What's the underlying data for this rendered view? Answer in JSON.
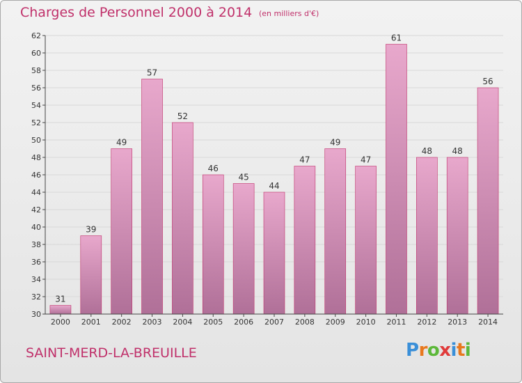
{
  "header": {
    "title": "Charges de Personnel 2000 à 2014",
    "subtitle": "(en milliers d'€)"
  },
  "footer": {
    "commune": "SAINT-MERD-LA-BREUILLE",
    "logo_letters": [
      "P",
      "r",
      "o",
      "x",
      "i",
      "t",
      "i"
    ],
    "logo_colors": [
      "#3a8fd8",
      "#e8781e",
      "#5cb83a",
      "#e03a3a",
      "#3a8fd8",
      "#e8781e",
      "#5cb83a"
    ]
  },
  "chart_data": {
    "type": "bar",
    "title": "Charges de Personnel 2000 à 2014",
    "subtitle": "(en milliers d'€)",
    "categories": [
      "2000",
      "2001",
      "2002",
      "2003",
      "2004",
      "2005",
      "2006",
      "2007",
      "2008",
      "2009",
      "2010",
      "2011",
      "2012",
      "2013",
      "2014"
    ],
    "values": [
      31,
      39,
      49,
      57,
      52,
      46,
      45,
      44,
      47,
      49,
      47,
      61,
      48,
      48,
      56
    ],
    "ylim": [
      30,
      62
    ],
    "yticks": [
      30,
      32,
      34,
      36,
      38,
      40,
      42,
      44,
      46,
      48,
      50,
      52,
      54,
      56,
      58,
      60,
      62
    ],
    "grid": true,
    "colors": {
      "bar_top": "#e8a8cc",
      "bar_bottom": "#b07098",
      "bar_stroke": "#c0306a",
      "grid": "#d8d8d8",
      "axis": "#444444",
      "text": "#333333"
    }
  }
}
